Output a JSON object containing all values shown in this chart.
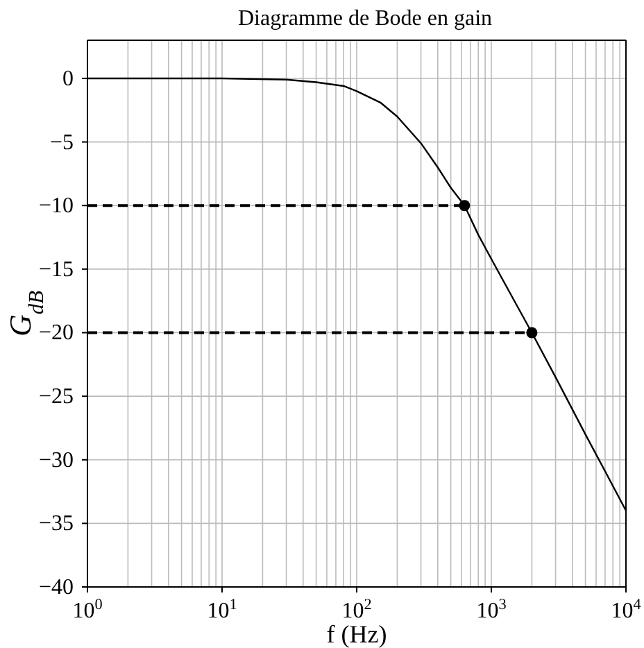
{
  "chart_data": {
    "type": "line",
    "title": "Diagramme de Bode en gain",
    "xlabel": "f (Hz)",
    "ylabel": "G$_{dB}$",
    "log": "x",
    "grid": true,
    "xlim": [
      1,
      10000
    ],
    "ylim": [
      -40,
      3
    ],
    "xticks": [
      {
        "value": 1,
        "label": "10$^{0}$"
      },
      {
        "value": 10,
        "label": "10$^{1}$"
      },
      {
        "value": 100,
        "label": "10$^{2}$"
      },
      {
        "value": 1000,
        "label": "10$^{3}$"
      },
      {
        "value": 10000,
        "label": "10$^{4}$"
      }
    ],
    "yticks": [
      {
        "value": 0,
        "label": "0"
      },
      {
        "value": -5,
        "label": "−5"
      },
      {
        "value": -10,
        "label": "−10"
      },
      {
        "value": -15,
        "label": "−15"
      },
      {
        "value": -20,
        "label": "−20"
      },
      {
        "value": -25,
        "label": "−25"
      },
      {
        "value": -30,
        "label": "−30"
      },
      {
        "value": -35,
        "label": "−35"
      },
      {
        "value": -40,
        "label": "−40"
      }
    ],
    "series": [
      {
        "color": "#000000",
        "line_style": "solid",
        "x": [
          1,
          10,
          30,
          50,
          80,
          100,
          150,
          200,
          300,
          400,
          500,
          632,
          800,
          1000,
          1500,
          2000,
          3000,
          5000,
          7000,
          10000
        ],
        "values": [
          0,
          0,
          -0.1,
          -0.3,
          -0.6,
          -1,
          -1.9,
          -3,
          -5.1,
          -7,
          -8.6,
          -10,
          -12.3,
          -14.2,
          -17.6,
          -20,
          -23.5,
          -28,
          -30.9,
          -34
        ]
      },
      {
        "color": "#000000",
        "line_style": "dashed",
        "x": [
          1,
          632
        ],
        "values": [
          -10,
          -10
        ]
      },
      {
        "color": "#000000",
        "line_style": "dashed",
        "x": [
          1,
          2000
        ],
        "values": [
          -20,
          -20
        ]
      },
      {
        "type": "scatter",
        "color": "#000000",
        "marker": "circle",
        "x": [
          632,
          2000
        ],
        "values": [
          -10,
          -20
        ]
      }
    ]
  }
}
